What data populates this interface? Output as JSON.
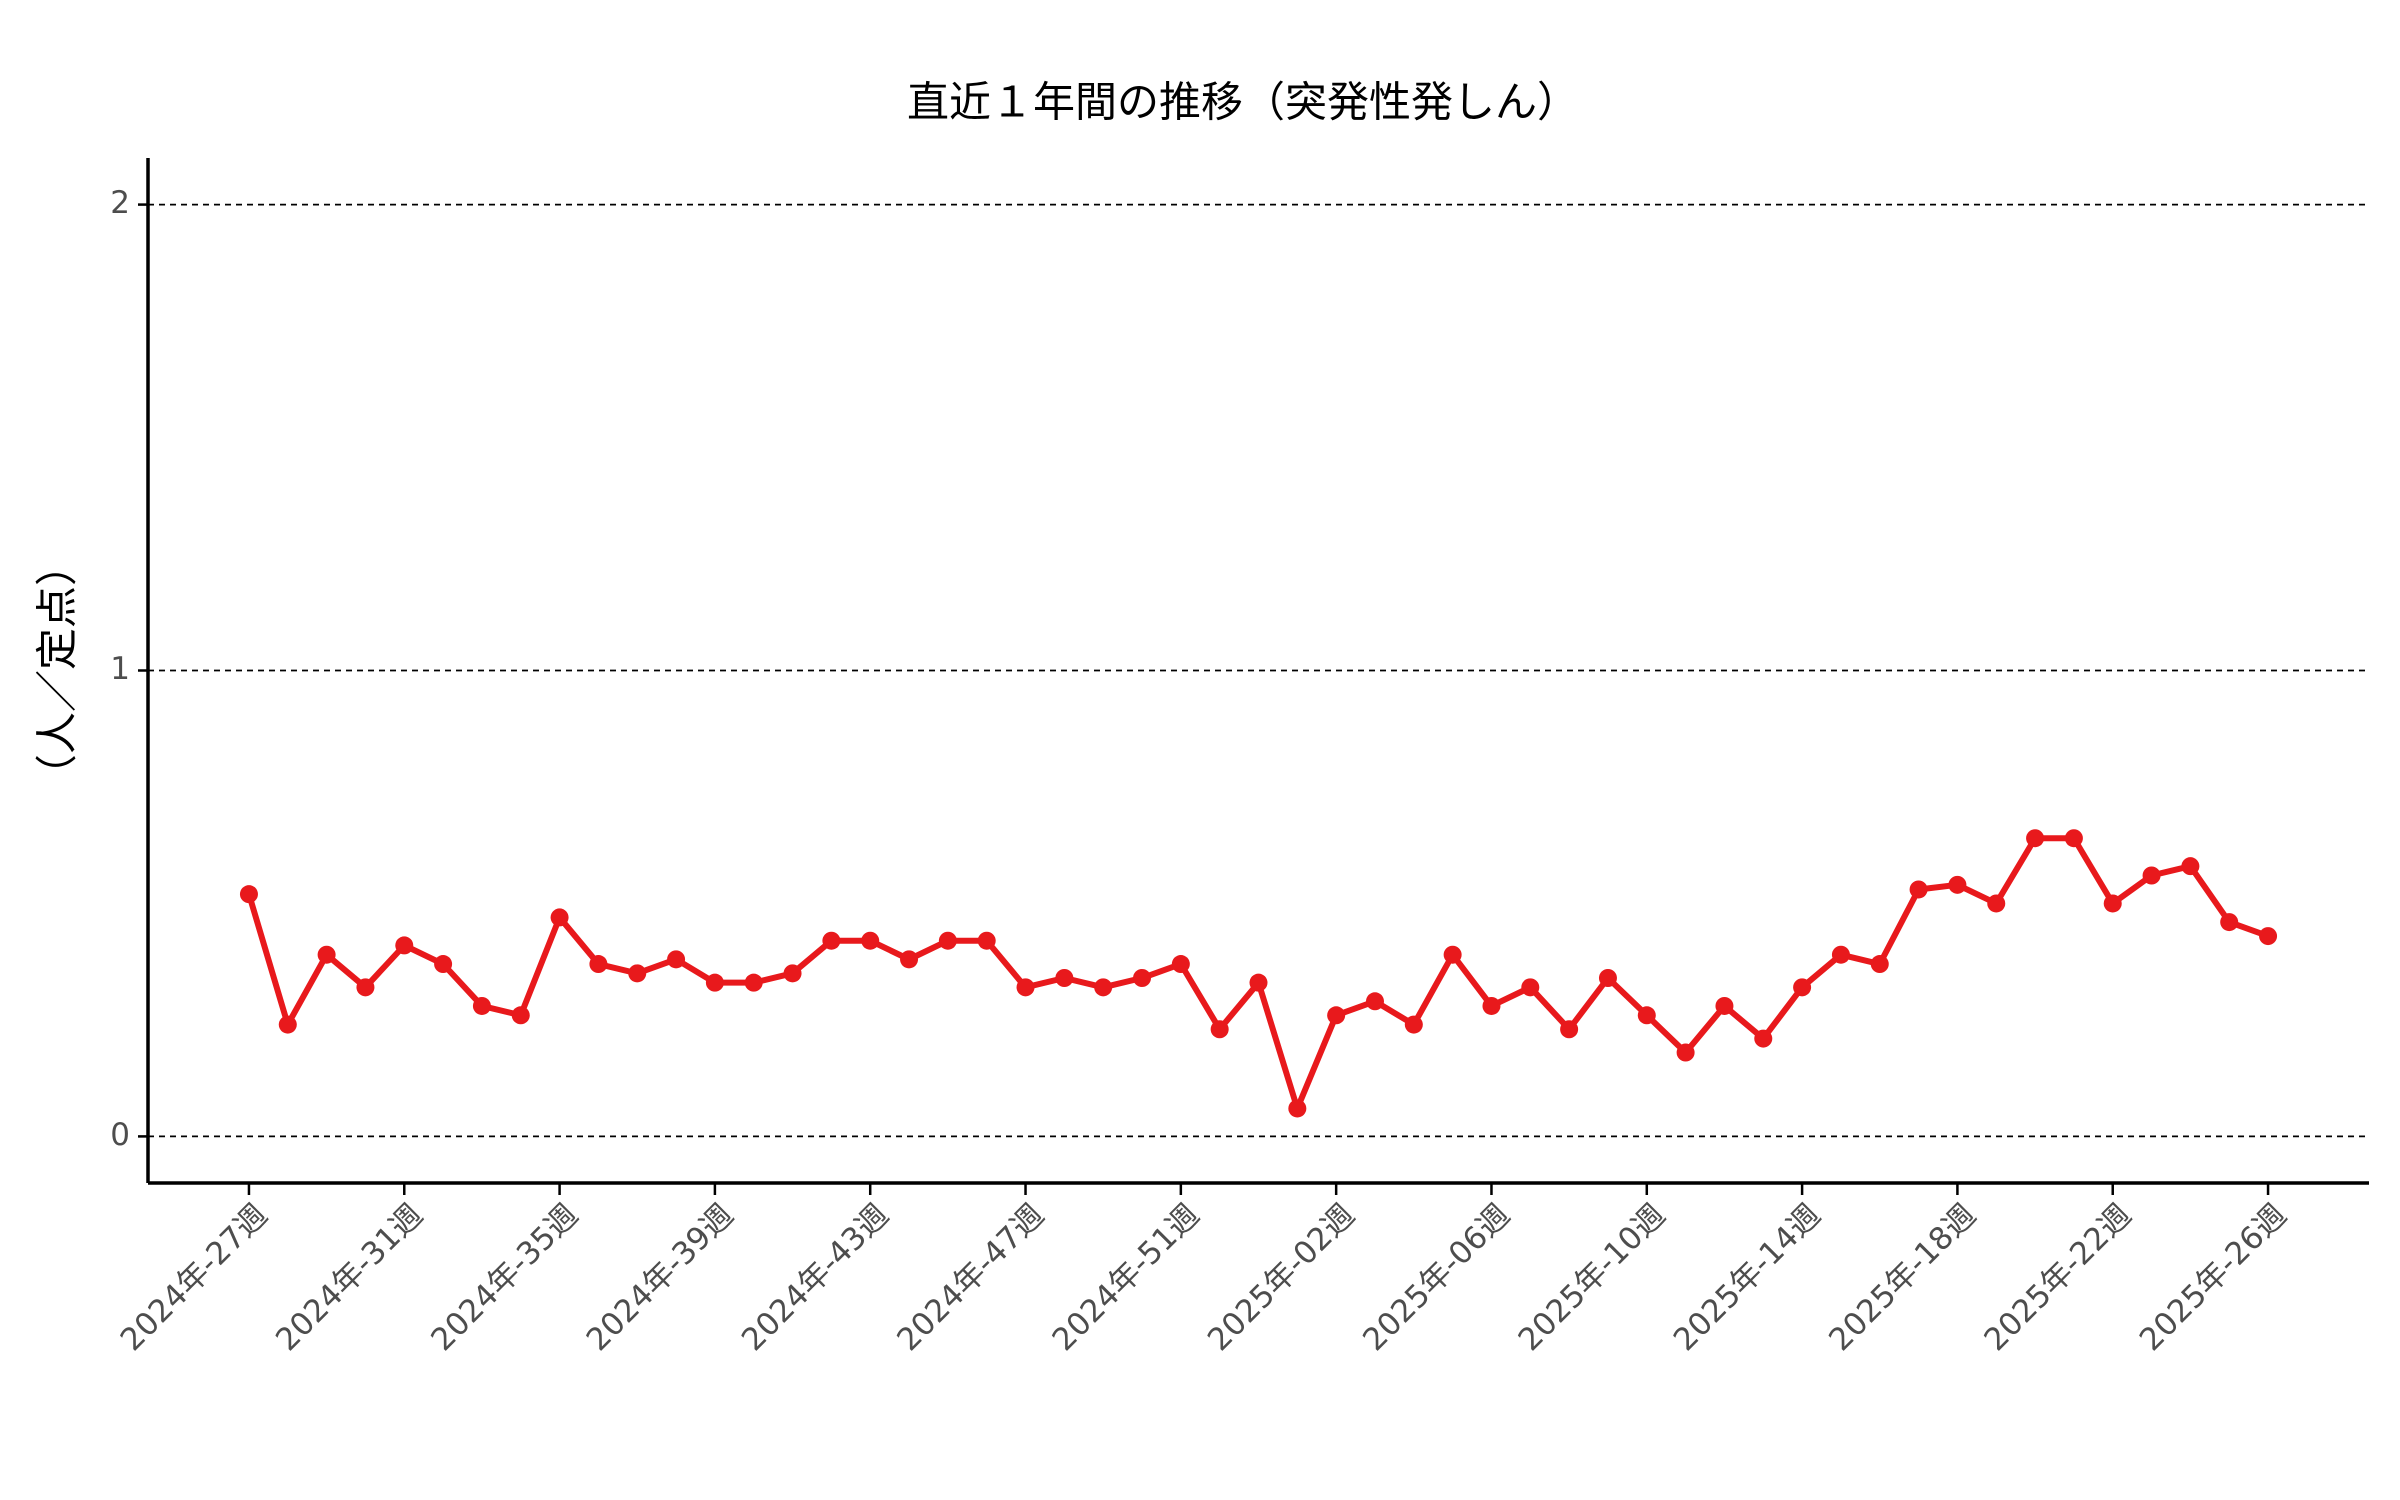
{
  "chart_data": {
    "type": "line",
    "title": "直近１年間の推移（突発性発しん）",
    "y_label": "（人／定点）",
    "categories": [
      "2024年-27週",
      null,
      null,
      null,
      "2024年-31週",
      null,
      null,
      null,
      "2024年-35週",
      null,
      null,
      null,
      "2024年-39週",
      null,
      null,
      null,
      "2024年-43週",
      null,
      null,
      null,
      "2024年-47週",
      null,
      null,
      null,
      "2024年-51週",
      null,
      null,
      null,
      "2025年-02週",
      null,
      null,
      null,
      "2025年-06週",
      null,
      null,
      null,
      "2025年-10週",
      null,
      null,
      null,
      "2025年-14週",
      null,
      null,
      null,
      "2025年-18週",
      null,
      null,
      null,
      "2025年-22週",
      null,
      null,
      null,
      "2025年-26週"
    ],
    "values": [
      0.52,
      0.24,
      0.39,
      0.32,
      0.41,
      0.37,
      0.28,
      0.26,
      0.47,
      0.37,
      0.35,
      0.38,
      0.33,
      0.33,
      0.35,
      0.42,
      0.42,
      0.38,
      0.42,
      0.42,
      0.32,
      0.34,
      0.32,
      0.34,
      0.37,
      0.23,
      0.33,
      0.06,
      0.26,
      0.29,
      0.24,
      0.39,
      0.28,
      0.32,
      0.23,
      0.34,
      0.26,
      0.18,
      0.28,
      0.21,
      0.32,
      0.39,
      0.37,
      0.53,
      0.54,
      0.5,
      0.64,
      0.64,
      0.5,
      0.56,
      0.58,
      0.46,
      0.43
    ],
    "color": "#e8191c",
    "ylim": [
      -0.1,
      2.1
    ],
    "yticks": [
      0,
      1,
      2
    ],
    "grid": true
  }
}
